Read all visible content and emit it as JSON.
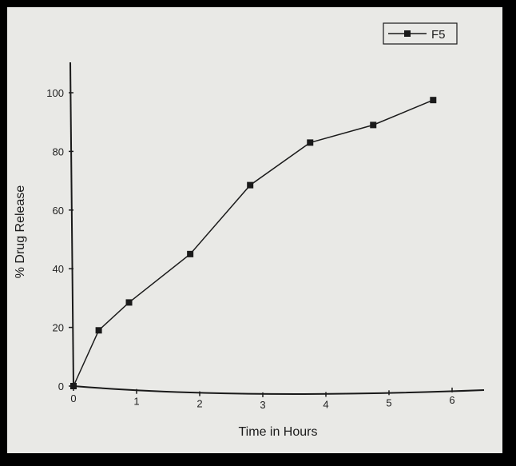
{
  "chart_data": {
    "type": "line",
    "xlabel": "Time in Hours",
    "ylabel": "% Drug Release",
    "xlim": [
      0,
      6.5
    ],
    "ylim": [
      0,
      110
    ],
    "x_ticks": [
      0,
      1,
      2,
      3,
      4,
      5,
      6
    ],
    "y_ticks": [
      0,
      20,
      40,
      60,
      80,
      100
    ],
    "grid": false,
    "legend_position": "top-right",
    "series": [
      {
        "name": "F5",
        "marker": "square",
        "x": [
          0,
          0.4,
          0.88,
          1.85,
          2.8,
          3.75,
          4.75,
          5.7
        ],
        "y": [
          0,
          19,
          28.5,
          45,
          68.5,
          83,
          89,
          97.5
        ]
      }
    ]
  },
  "colors": {
    "background": "#e9e9e6",
    "frame": "#000000",
    "line": "#1a1a1a"
  }
}
